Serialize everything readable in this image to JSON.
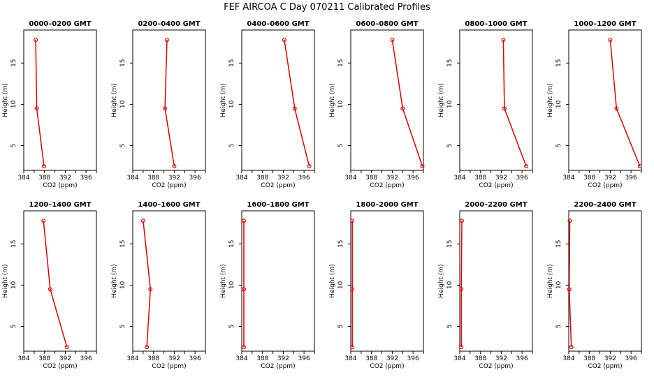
{
  "title": "FEF AIRCOA C  Day 070211  Calibrated Profiles",
  "chart_data": [
    {
      "type": "line",
      "title": "0000–0200 GMT",
      "xlabel": "CO2 (ppm)",
      "ylabel": "Height (m)",
      "xlim": [
        384,
        398
      ],
      "ylim": [
        2,
        19
      ],
      "xticks": [
        384,
        388,
        392,
        396
      ],
      "yticks": [
        5,
        10,
        15
      ],
      "line_color": "#e00000",
      "x": [
        387.9,
        386.5,
        386.3
      ],
      "y": [
        2.5,
        9.5,
        17.8
      ]
    },
    {
      "type": "line",
      "title": "0200–0400 GMT",
      "xlabel": "CO2 (ppm)",
      "ylabel": "Height (m)",
      "xlim": [
        384,
        398
      ],
      "ylim": [
        2,
        19
      ],
      "xticks": [
        384,
        388,
        392,
        396
      ],
      "yticks": [
        5,
        10,
        15
      ],
      "line_color": "#e00000",
      "x": [
        392.0,
        390.2,
        390.6
      ],
      "y": [
        2.5,
        9.5,
        17.8
      ]
    },
    {
      "type": "line",
      "title": "0400–0600 GMT",
      "xlabel": "CO2 (ppm)",
      "ylabel": "Height (m)",
      "xlim": [
        384,
        398
      ],
      "ylim": [
        2,
        19
      ],
      "xticks": [
        384,
        388,
        392,
        396
      ],
      "yticks": [
        5,
        10,
        15
      ],
      "line_color": "#e00000",
      "x": [
        397.0,
        394.2,
        392.2
      ],
      "y": [
        2.5,
        9.5,
        17.8
      ]
    },
    {
      "type": "line",
      "title": "0600–0800 GMT",
      "xlabel": "CO2 (ppm)",
      "ylabel": "Height (m)",
      "xlim": [
        384,
        398
      ],
      "ylim": [
        2,
        19
      ],
      "xticks": [
        384,
        388,
        392,
        396
      ],
      "yticks": [
        5,
        10,
        15
      ],
      "line_color": "#e00000",
      "x": [
        397.8,
        394.0,
        392.0
      ],
      "y": [
        2.5,
        9.5,
        17.8
      ]
    },
    {
      "type": "line",
      "title": "0800–1000 GMT",
      "xlabel": "CO2 (ppm)",
      "ylabel": "Height (m)",
      "xlim": [
        384,
        398
      ],
      "ylim": [
        2,
        19
      ],
      "xticks": [
        384,
        388,
        392,
        396
      ],
      "yticks": [
        5,
        10,
        15
      ],
      "line_color": "#e00000",
      "x": [
        396.8,
        392.6,
        392.4
      ],
      "y": [
        2.5,
        9.5,
        17.8
      ]
    },
    {
      "type": "line",
      "title": "1000–1200 GMT",
      "xlabel": "CO2 (ppm)",
      "ylabel": "Height (m)",
      "xlim": [
        384,
        398
      ],
      "ylim": [
        2,
        19
      ],
      "xticks": [
        384,
        388,
        392,
        396
      ],
      "yticks": [
        5,
        10,
        15
      ],
      "line_color": "#e00000",
      "x": [
        397.7,
        393.2,
        392.0
      ],
      "y": [
        2.5,
        9.5,
        17.8
      ]
    },
    {
      "type": "line",
      "title": "1200–1400 GMT",
      "xlabel": "CO2 (ppm)",
      "ylabel": "Height (m)",
      "xlim": [
        384,
        398
      ],
      "ylim": [
        2,
        19
      ],
      "xticks": [
        384,
        388,
        392,
        396
      ],
      "yticks": [
        5,
        10,
        15
      ],
      "line_color": "#e00000",
      "x": [
        392.3,
        389.1,
        387.8
      ],
      "y": [
        2.5,
        9.5,
        17.8
      ]
    },
    {
      "type": "line",
      "title": "1400–1600 GMT",
      "xlabel": "CO2 (ppm)",
      "ylabel": "Height (m)",
      "xlim": [
        384,
        398
      ],
      "ylim": [
        2,
        19
      ],
      "xticks": [
        384,
        388,
        392,
        396
      ],
      "yticks": [
        5,
        10,
        15
      ],
      "line_color": "#e00000",
      "x": [
        386.7,
        387.4,
        386.0
      ],
      "y": [
        2.5,
        9.5,
        17.8
      ]
    },
    {
      "type": "line",
      "title": "1600–1800 GMT",
      "xlabel": "CO2 (ppm)",
      "ylabel": "Height (m)",
      "xlim": [
        384,
        398
      ],
      "ylim": [
        2,
        19
      ],
      "xticks": [
        384,
        388,
        392,
        396
      ],
      "yticks": [
        5,
        10,
        15
      ],
      "line_color": "#e00000",
      "x": [
        384.4,
        384.4,
        384.4
      ],
      "y": [
        2.5,
        9.5,
        17.8
      ]
    },
    {
      "type": "line",
      "title": "1800–2000 GMT",
      "xlabel": "CO2 (ppm)",
      "ylabel": "Height (m)",
      "xlim": [
        384,
        398
      ],
      "ylim": [
        2,
        19
      ],
      "xticks": [
        384,
        388,
        392,
        396
      ],
      "yticks": [
        5,
        10,
        15
      ],
      "line_color": "#e00000",
      "x": [
        384.3,
        384.3,
        384.3
      ],
      "y": [
        2.5,
        9.5,
        17.8
      ]
    },
    {
      "type": "line",
      "title": "2000–2200 GMT",
      "xlabel": "CO2 (ppm)",
      "ylabel": "Height (m)",
      "xlim": [
        384,
        398
      ],
      "ylim": [
        2,
        19
      ],
      "xticks": [
        384,
        388,
        392,
        396
      ],
      "yticks": [
        5,
        10,
        15
      ],
      "line_color": "#e00000",
      "x": [
        384.3,
        384.3,
        384.4
      ],
      "y": [
        2.5,
        9.5,
        17.8
      ]
    },
    {
      "type": "line",
      "title": "2200–2400 GMT",
      "xlabel": "CO2 (ppm)",
      "ylabel": "Height (m)",
      "xlim": [
        384,
        398
      ],
      "ylim": [
        2,
        19
      ],
      "xticks": [
        384,
        388,
        392,
        396
      ],
      "yticks": [
        5,
        10,
        15
      ],
      "line_color": "#e00000",
      "x": [
        384.5,
        384.1,
        384.2
      ],
      "y": [
        2.5,
        9.5,
        17.8
      ]
    }
  ]
}
